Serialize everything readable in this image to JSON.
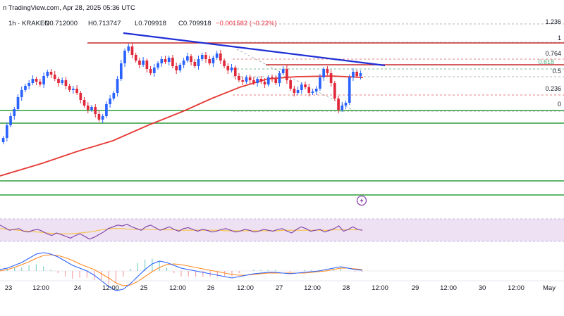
{
  "header": {
    "source_fragment": "n TradingView.com, Apr 28, 2025 05:36 UTC",
    "symbol_line": "1h · KRAKEN",
    "ohlc": [
      "O0.712000",
      "H0.713747",
      "L0.709918",
      "C0.709918"
    ],
    "change": "−0.001582 (−0.22%)"
  },
  "colors": {
    "up": "#2962ff",
    "down": "#e0283a",
    "ma": "#e53935",
    "trendline": "#1f2fd6",
    "resistance": "#c62828",
    "support": "#2e9e3a",
    "rsi": "#7e3fa8",
    "rsi_band": "#ede1f3",
    "rsi_ma": "#f5c242",
    "macd": "#2962ff",
    "signal": "#ff8a1f"
  },
  "chart_data": {
    "type": "candlestick",
    "fib_levels": [
      "1.236",
      "1",
      "0.764",
      "0.618",
      "0.5",
      "0.236",
      "0"
    ],
    "x_ticks": [
      "23",
      "12:00",
      "24",
      "12:00",
      "25",
      "12:00",
      "26",
      "12:00",
      "27",
      "12:00",
      "28",
      "12:00",
      "29",
      "12:00",
      "30",
      "12:00",
      "May"
    ],
    "candle_closes": [
      196,
      178,
      165,
      155,
      138,
      128,
      122,
      118,
      112,
      116,
      120,
      108,
      102,
      106,
      112,
      118,
      114,
      122,
      128,
      126,
      132,
      142,
      150,
      156,
      152,
      162,
      170,
      165,
      148,
      140,
      132,
      112,
      90,
      72,
      66,
      78,
      86,
      92,
      86,
      98,
      104,
      96,
      90,
      84,
      88,
      82,
      94,
      100,
      92,
      86,
      80,
      88,
      94,
      84,
      78,
      84,
      90,
      82,
      76,
      86,
      94,
      100,
      96,
      108,
      114,
      116,
      110,
      114,
      118,
      112,
      116,
      120,
      110,
      112,
      118,
      104,
      98,
      114,
      126,
      132,
      128,
      120,
      124,
      132,
      130,
      126,
      110,
      98,
      104,
      118,
      140,
      156,
      150,
      146,
      110,
      102,
      108,
      104
    ],
    "ma_curve": [
      [
        0,
        250
      ],
      [
        60,
        232
      ],
      [
        110,
        215
      ],
      [
        160,
        200
      ],
      [
        210,
        178
      ],
      [
        260,
        158
      ],
      [
        300,
        140
      ],
      [
        340,
        124
      ],
      [
        380,
        112
      ],
      [
        420,
        109
      ],
      [
        470,
        108
      ],
      [
        515,
        110
      ]
    ],
    "rsi_values": [
      60,
      54,
      48,
      50,
      52,
      46,
      44,
      48,
      50,
      46,
      40,
      36,
      42,
      38,
      34,
      30,
      36,
      40,
      34,
      28,
      32,
      38,
      44,
      52,
      56,
      60,
      58,
      62,
      56,
      52,
      48,
      56,
      60,
      54,
      48,
      52,
      56,
      50,
      46,
      52,
      54,
      50,
      46,
      50,
      48,
      44,
      46,
      50,
      52,
      48,
      44,
      46,
      50,
      48,
      44,
      46,
      50,
      48,
      46,
      50,
      52,
      46,
      42,
      50,
      56,
      52,
      46,
      48,
      50,
      44,
      48,
      52,
      58,
      46,
      50,
      56,
      50,
      48
    ],
    "rsi_ma_values": [
      52,
      51,
      50,
      49,
      48,
      47,
      46,
      45,
      44,
      43,
      42,
      41,
      41,
      40,
      40,
      40,
      41,
      42,
      43,
      44,
      46,
      48,
      50,
      51,
      52,
      52,
      52,
      51,
      50,
      50,
      50,
      50,
      50,
      50,
      49,
      49,
      49,
      49,
      48,
      48,
      48,
      48,
      48,
      48,
      48,
      48,
      48,
      48,
      47,
      47,
      47,
      47,
      47,
      47,
      47,
      47,
      47,
      47,
      47,
      47,
      48,
      48,
      48,
      48,
      48,
      48,
      48,
      48,
      48,
      48,
      48,
      49,
      49,
      49,
      49,
      49,
      49,
      49
    ],
    "macd_values": [
      2,
      4,
      8,
      12,
      18,
      24,
      26,
      24,
      20,
      14,
      8,
      4,
      0,
      -6,
      -14,
      -22,
      -28,
      -26,
      -18,
      -8,
      2,
      10,
      14,
      12,
      8,
      4,
      2,
      0,
      -2,
      -4,
      -6,
      -8,
      -10,
      -8,
      -6,
      -4,
      -3,
      -2,
      -2,
      -3,
      -4,
      -3,
      -2,
      -1,
      0,
      2,
      4,
      6,
      4,
      2,
      1
    ],
    "signal_values": [
      0,
      2,
      5,
      9,
      13,
      18,
      22,
      23,
      22,
      19,
      15,
      10,
      6,
      2,
      -4,
      -10,
      -17,
      -21,
      -20,
      -15,
      -8,
      -1,
      5,
      9,
      10,
      9,
      7,
      5,
      3,
      1,
      -1,
      -3,
      -5,
      -6,
      -6,
      -5,
      -4,
      -3,
      -3,
      -3,
      -3,
      -3,
      -3,
      -2,
      -1,
      0,
      2,
      4,
      4,
      3,
      2
    ]
  }
}
